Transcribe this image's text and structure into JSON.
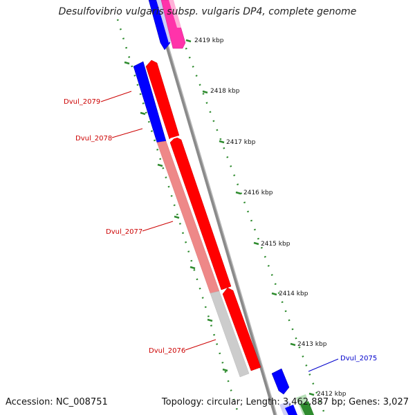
{
  "title": "Desulfovibrio vulgaris subsp. vulgaris DP4, complete genome",
  "accession": "Accession: NC_008751",
  "summary": "Topology: circular; Length: 3,462,887 bp; Genes: 3,027",
  "colors": {
    "backbone": "#8a8a8a",
    "tick": "#2e8b2e",
    "forward_cds": "#ff0000",
    "reverse_cds": "#0000ff",
    "pink_cds": "#ff33aa",
    "faded_red": "#ee8888",
    "gray_feature": "#cccccc",
    "label_red": "#cc0000",
    "label_blue": "#0000cc"
  },
  "kbp_labels": [
    "2419 kbp",
    "2418 kbp",
    "2417 kbp",
    "2416 kbp",
    "2415 kbp",
    "2414 kbp",
    "2413 kbp",
    "2412 kbp"
  ],
  "gene_labels": [
    {
      "text": "Dvul_2079",
      "color": "#cc0000"
    },
    {
      "text": "Dvul_2078",
      "color": "#cc0000"
    },
    {
      "text": "Dvul_2077",
      "color": "#cc0000"
    },
    {
      "text": "Dvul_2076",
      "color": "#cc0000"
    },
    {
      "text": "Dvul_2075",
      "color": "#0000cc"
    }
  ]
}
